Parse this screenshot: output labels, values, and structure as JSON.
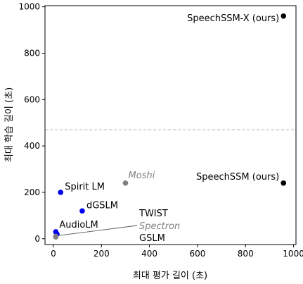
{
  "chart_data": {
    "type": "scatter",
    "xlabel": "최대 평가 길이 (초)",
    "ylabel": "최대 학습 길이 (초)",
    "xlim": [
      -35,
      1010
    ],
    "ylim": [
      -25,
      1005
    ],
    "xticks": [
      0,
      200,
      400,
      600,
      800,
      1000
    ],
    "yticks": [
      0,
      200,
      400,
      600,
      800,
      1000
    ],
    "xtick_labels": [
      "0",
      "200",
      "400",
      "600",
      "800",
      "1000"
    ],
    "ytick_labels": [
      "0",
      "200",
      "400",
      "600",
      "800",
      "1000"
    ],
    "grid": false,
    "reference_line": {
      "axis": "y",
      "value": 470,
      "style": "dashed",
      "color": "#aaaaaa"
    },
    "points": [
      {
        "label": "SpeechSSM-X (ours)",
        "x": 958,
        "y": 960,
        "color": "#000000",
        "italic": false
      },
      {
        "label": "SpeechSSM (ours)",
        "x": 958,
        "y": 240,
        "color": "#000000",
        "italic": false
      },
      {
        "label": "Moshi",
        "x": 300,
        "y": 240,
        "color": "#808080",
        "italic": true
      },
      {
        "label": "Spirit LM",
        "x": 30,
        "y": 200,
        "color": "#0000ee",
        "italic": false
      },
      {
        "label": "dGSLM",
        "x": 120,
        "y": 120,
        "color": "#0000ee",
        "italic": false
      },
      {
        "label": "AudioLM",
        "x": 10,
        "y": 30,
        "color": "#0000ee",
        "italic": false
      },
      {
        "label": "TWIST",
        "x": 15,
        "y": 20,
        "color": "#0000ee",
        "italic": false
      },
      {
        "label": "Spectron",
        "x": 10,
        "y": 10,
        "color": "#808080",
        "italic": true
      },
      {
        "label": "GSLM",
        "x": 10,
        "y": 8,
        "color": "#808080",
        "italic": false
      }
    ]
  }
}
